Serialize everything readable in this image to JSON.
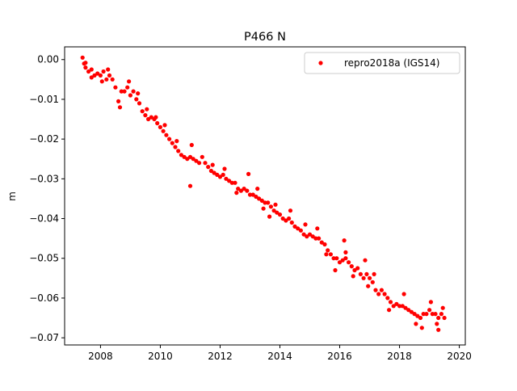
{
  "chart_data": {
    "type": "scatter",
    "title": "P466 N",
    "xlabel": "",
    "ylabel": "m",
    "xlim": [
      2006.8,
      2020.2
    ],
    "ylim": [
      -0.0718,
      0.0032
    ],
    "x_ticks": [
      2008,
      2010,
      2012,
      2014,
      2016,
      2018,
      2020
    ],
    "x_tick_labels": [
      "2008",
      "2010",
      "2012",
      "2014",
      "2016",
      "2018",
      "2020"
    ],
    "y_ticks": [
      0.0,
      -0.01,
      -0.02,
      -0.03,
      -0.04,
      -0.05,
      -0.06,
      -0.07
    ],
    "y_tick_labels": [
      "0.00",
      "−0.01",
      "−0.02",
      "−0.03",
      "−0.04",
      "−0.05",
      "−0.06",
      "−0.07"
    ],
    "grid": false,
    "legend_position": "top-right",
    "series": [
      {
        "name": "repro2018a (IGS14)",
        "color": "#ff0000",
        "marker": "circle",
        "points": [
          [
            2007.4,
            0.0005
          ],
          [
            2007.45,
            -0.001
          ],
          [
            2007.5,
            -0.002
          ],
          [
            2007.6,
            -0.003
          ],
          [
            2007.7,
            -0.0025
          ],
          [
            2007.8,
            -0.004
          ],
          [
            2007.9,
            -0.0035
          ],
          [
            2008.0,
            -0.004
          ],
          [
            2008.1,
            -0.003
          ],
          [
            2008.2,
            -0.005
          ],
          [
            2008.3,
            -0.004
          ],
          [
            2008.4,
            -0.005
          ],
          [
            2008.5,
            -0.007
          ],
          [
            2008.6,
            -0.0105
          ],
          [
            2008.7,
            -0.008
          ],
          [
            2008.8,
            -0.008
          ],
          [
            2008.9,
            -0.007
          ],
          [
            2009.0,
            -0.009
          ],
          [
            2009.1,
            -0.008
          ],
          [
            2009.2,
            -0.01
          ],
          [
            2009.3,
            -0.011
          ],
          [
            2009.4,
            -0.013
          ],
          [
            2009.5,
            -0.014
          ],
          [
            2009.6,
            -0.015
          ],
          [
            2009.7,
            -0.0145
          ],
          [
            2009.8,
            -0.015
          ],
          [
            2009.9,
            -0.016
          ],
          [
            2010.0,
            -0.017
          ],
          [
            2010.1,
            -0.018
          ],
          [
            2010.2,
            -0.019
          ],
          [
            2010.3,
            -0.02
          ],
          [
            2010.4,
            -0.021
          ],
          [
            2010.5,
            -0.022
          ],
          [
            2010.6,
            -0.023
          ],
          [
            2010.7,
            -0.024
          ],
          [
            2010.8,
            -0.0245
          ],
          [
            2010.9,
            -0.025
          ],
          [
            2011.0,
            -0.0245
          ],
          [
            2011.1,
            -0.025
          ],
          [
            2011.2,
            -0.0255
          ],
          [
            2011.3,
            -0.026
          ],
          [
            2011.4,
            -0.0245
          ],
          [
            2011.5,
            -0.026
          ],
          [
            2011.6,
            -0.027
          ],
          [
            2011.7,
            -0.028
          ],
          [
            2011.8,
            -0.0285
          ],
          [
            2011.9,
            -0.029
          ],
          [
            2012.0,
            -0.0295
          ],
          [
            2012.1,
            -0.029
          ],
          [
            2012.2,
            -0.03
          ],
          [
            2012.3,
            -0.0305
          ],
          [
            2012.4,
            -0.031
          ],
          [
            2012.5,
            -0.031
          ],
          [
            2012.6,
            -0.0325
          ],
          [
            2012.7,
            -0.033
          ],
          [
            2012.8,
            -0.0325
          ],
          [
            2012.9,
            -0.033
          ],
          [
            2013.0,
            -0.034
          ],
          [
            2013.1,
            -0.034
          ],
          [
            2013.2,
            -0.0345
          ],
          [
            2013.3,
            -0.035
          ],
          [
            2013.4,
            -0.0355
          ],
          [
            2013.5,
            -0.036
          ],
          [
            2013.6,
            -0.036
          ],
          [
            2013.7,
            -0.037
          ],
          [
            2013.8,
            -0.038
          ],
          [
            2013.9,
            -0.0385
          ],
          [
            2014.0,
            -0.039
          ],
          [
            2014.1,
            -0.04
          ],
          [
            2014.2,
            -0.0405
          ],
          [
            2014.3,
            -0.04
          ],
          [
            2014.4,
            -0.041
          ],
          [
            2014.5,
            -0.042
          ],
          [
            2014.6,
            -0.0425
          ],
          [
            2014.7,
            -0.043
          ],
          [
            2014.8,
            -0.044
          ],
          [
            2014.9,
            -0.0445
          ],
          [
            2015.0,
            -0.044
          ],
          [
            2015.1,
            -0.0445
          ],
          [
            2015.2,
            -0.045
          ],
          [
            2015.3,
            -0.045
          ],
          [
            2015.4,
            -0.046
          ],
          [
            2015.5,
            -0.0465
          ],
          [
            2015.6,
            -0.048
          ],
          [
            2015.7,
            -0.049
          ],
          [
            2015.8,
            -0.05
          ],
          [
            2015.9,
            -0.05
          ],
          [
            2016.0,
            -0.051
          ],
          [
            2016.1,
            -0.0505
          ],
          [
            2016.2,
            -0.05
          ],
          [
            2016.3,
            -0.051
          ],
          [
            2016.4,
            -0.052
          ],
          [
            2016.5,
            -0.053
          ],
          [
            2016.6,
            -0.0525
          ],
          [
            2016.7,
            -0.054
          ],
          [
            2016.8,
            -0.055
          ],
          [
            2016.9,
            -0.054
          ],
          [
            2017.0,
            -0.055
          ],
          [
            2017.1,
            -0.056
          ],
          [
            2017.2,
            -0.058
          ],
          [
            2017.3,
            -0.059
          ],
          [
            2017.4,
            -0.058
          ],
          [
            2017.5,
            -0.059
          ],
          [
            2017.6,
            -0.06
          ],
          [
            2017.7,
            -0.061
          ],
          [
            2017.8,
            -0.062
          ],
          [
            2017.9,
            -0.0615
          ],
          [
            2018.0,
            -0.062
          ],
          [
            2018.1,
            -0.062
          ],
          [
            2018.2,
            -0.0625
          ],
          [
            2018.3,
            -0.063
          ],
          [
            2018.4,
            -0.0635
          ],
          [
            2018.5,
            -0.064
          ],
          [
            2018.6,
            -0.0645
          ],
          [
            2018.7,
            -0.065
          ],
          [
            2018.8,
            -0.064
          ],
          [
            2018.9,
            -0.064
          ],
          [
            2019.0,
            -0.063
          ],
          [
            2019.1,
            -0.064
          ],
          [
            2019.2,
            -0.064
          ],
          [
            2019.3,
            -0.065
          ],
          [
            2019.4,
            -0.064
          ],
          [
            2019.5,
            -0.065
          ],
          [
            2007.5,
            -0.0008
          ],
          [
            2007.7,
            -0.0045
          ],
          [
            2008.05,
            -0.0055
          ],
          [
            2008.25,
            -0.0025
          ],
          [
            2008.65,
            -0.012
          ],
          [
            2008.95,
            -0.0055
          ],
          [
            2009.25,
            -0.0085
          ],
          [
            2009.55,
            -0.0125
          ],
          [
            2010.15,
            -0.0165
          ],
          [
            2010.55,
            -0.0205
          ],
          [
            2011.05,
            -0.0215
          ],
          [
            2011.0,
            -0.0318
          ],
          [
            2011.75,
            -0.0265
          ],
          [
            2012.15,
            -0.0275
          ],
          [
            2012.55,
            -0.0335
          ],
          [
            2012.95,
            -0.0288
          ],
          [
            2013.25,
            -0.0325
          ],
          [
            2013.45,
            -0.0375
          ],
          [
            2013.85,
            -0.0365
          ],
          [
            2014.35,
            -0.038
          ],
          [
            2014.85,
            -0.0415
          ],
          [
            2015.25,
            -0.0425
          ],
          [
            2015.55,
            -0.049
          ],
          [
            2015.85,
            -0.053
          ],
          [
            2016.15,
            -0.0455
          ],
          [
            2016.2,
            -0.0485
          ],
          [
            2016.45,
            -0.0545
          ],
          [
            2016.85,
            -0.0505
          ],
          [
            2016.95,
            -0.057
          ],
          [
            2017.15,
            -0.054
          ],
          [
            2017.65,
            -0.063
          ],
          [
            2018.15,
            -0.059
          ],
          [
            2018.55,
            -0.0665
          ],
          [
            2018.75,
            -0.0675
          ],
          [
            2019.05,
            -0.061
          ],
          [
            2019.25,
            -0.0665
          ],
          [
            2019.45,
            -0.0625
          ],
          [
            2019.3,
            -0.068
          ],
          [
            2009.85,
            -0.0145
          ],
          [
            2013.65,
            -0.0395
          ]
        ]
      }
    ]
  }
}
